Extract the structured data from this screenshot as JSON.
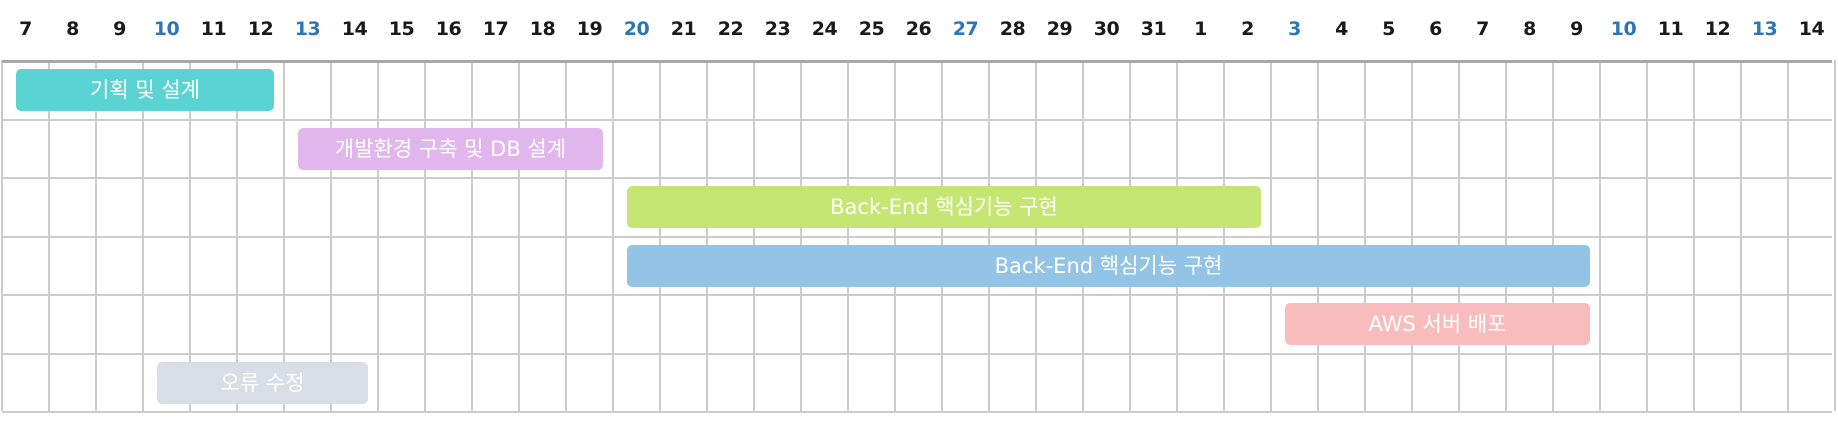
{
  "chart_data": {
    "type": "gantt",
    "days": [
      "7",
      "8",
      "9",
      "10",
      "11",
      "12",
      "13",
      "14",
      "15",
      "16",
      "17",
      "18",
      "19",
      "20",
      "21",
      "22",
      "23",
      "24",
      "25",
      "26",
      "27",
      "28",
      "29",
      "30",
      "31",
      "1",
      "2",
      "3",
      "4",
      "5",
      "6",
      "7",
      "8",
      "9",
      "10",
      "11",
      "12",
      "13",
      "14"
    ],
    "highlighted_days": [
      "13",
      "20",
      "27",
      "3",
      "10"
    ],
    "day_color": "#1a1a1a",
    "highlight_color": "#2e75b6",
    "grid_color": "#cccccc",
    "tasks": [
      {
        "label": "기획 및 설계",
        "start": "7",
        "end": "12",
        "color": "#5bd3d3"
      },
      {
        "label": "개발환경 구축 및 DB 설계",
        "start": "13",
        "end": "19",
        "color": "#e0b6ec"
      },
      {
        "label": "Back-End 핵심기능 구현",
        "start": "20",
        "end": "2",
        "color": "#c5e672"
      },
      {
        "label": "Back-End 핵심기능 구현",
        "start": "20",
        "end": "9",
        "color": "#93c3e5"
      },
      {
        "label": "AWS 서버 배포",
        "start": "3",
        "end": "9",
        "color": "#f8bcbc"
      },
      {
        "label": "오류 수정",
        "start": "10",
        "end": "14",
        "color": "#d9dde6"
      }
    ]
  }
}
